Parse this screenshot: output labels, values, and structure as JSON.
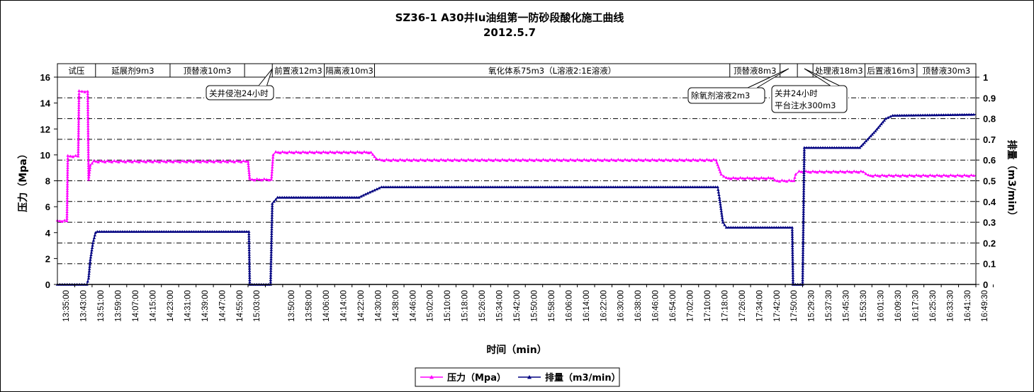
{
  "chart_data": {
    "type": "line",
    "title": "SZ36-1 A30井lu油组第一防砂段酸化施工曲线",
    "subtitle": "2012.5.7",
    "xlabel": "时间（min）",
    "ylabel_left": "压力（Mpa）",
    "ylabel_right": "排量（m3/min）",
    "ylim_left": [
      0,
      16
    ],
    "ylim_right": [
      0,
      1
    ],
    "yticks_left": [
      "0",
      "2",
      "4",
      "6",
      "8",
      "10",
      "12",
      "14",
      "16"
    ],
    "yticks_right": [
      "0",
      "0.1",
      "0.2",
      "0.3",
      "0.4",
      "0.5",
      "0.6",
      "0.7",
      "0.8",
      "0.9",
      "1"
    ],
    "x_tick_labels": [
      "13:35:00",
      "13:43:00",
      "13:51:00",
      "13:59:00",
      "14:07:00",
      "14:15:00",
      "14:23:00",
      "14:31:00",
      "14:39:00",
      "14:47:00",
      "14:55:00",
      "15:03:00",
      "",
      "13:50:00",
      "13:58:00",
      "14:06:00",
      "14:14:00",
      "14:22:00",
      "14:30:00",
      "14:38:00",
      "14:46:00",
      "15:02:00",
      "15:10:00",
      "15:18:00",
      "15:26:00",
      "15:34:00",
      "15:42:00",
      "15:50:00",
      "15:58:00",
      "16:06:00",
      "16:14:00",
      "16:22:00",
      "16:30:00",
      "16:38:00",
      "16:46:00",
      "16:54:00",
      "17:02:00",
      "17:10:00",
      "17:18:00",
      "17:26:00",
      "17:34:00",
      "17:42:00",
      "17:50:00",
      "15:29:30",
      "15:37:30",
      "15:45:30",
      "15:53:30",
      "16:01:30",
      "16:09:30",
      "16:17:30",
      "16:25:30",
      "16:33:30",
      "16:41:30",
      "16:49:30"
    ],
    "x_range": [
      0,
      53
    ],
    "grid": true,
    "legend_position": "bottom",
    "stages": [
      {
        "label": "试压",
        "from": 0,
        "to": 2.2
      },
      {
        "label": "延展剂9m3",
        "from": 2.2,
        "to": 6.5
      },
      {
        "label": "顶替液10m3",
        "from": 6.5,
        "to": 10.8
      },
      {
        "label": "",
        "from": 10.8,
        "to": 12.4
      },
      {
        "label": "前置液12m3",
        "from": 12.4,
        "to": 15.4
      },
      {
        "label": "隔离液10m3",
        "from": 15.4,
        "to": 18.3
      },
      {
        "label": "氧化体系75m3（L溶液2:1E溶液）",
        "from": 18.3,
        "to": 38.8
      },
      {
        "label": "顶替液8m3",
        "from": 38.8,
        "to": 41.7
      },
      {
        "label": "",
        "from": 41.7,
        "to": 42.7
      },
      {
        "label": "",
        "from": 42.7,
        "to": 43.6
      },
      {
        "label": "处理液18m3",
        "from": 43.6,
        "to": 46.6
      },
      {
        "label": "后置液16m3",
        "from": 46.6,
        "to": 49.6
      },
      {
        "label": "顶替液30m3",
        "from": 49.6,
        "to": 53
      }
    ],
    "annotations": [
      {
        "lines": [
          "关井侵泡24小时"
        ],
        "anchor_x": 12.4
      },
      {
        "lines": [
          "除氧剂溶液2m3"
        ],
        "anchor_x": 42.2
      },
      {
        "lines": [
          "关井24小时",
          "平台注水300m3"
        ],
        "anchor_x": 43.1
      }
    ],
    "series": [
      {
        "name": "压力（Mpa）",
        "color": "#ff00ff",
        "marker": "triangle",
        "axis": "left",
        "points": [
          [
            0,
            4.9
          ],
          [
            0.55,
            4.9
          ],
          [
            0.6,
            9.9
          ],
          [
            1.2,
            9.9
          ],
          [
            1.25,
            14.9
          ],
          [
            1.75,
            14.9
          ],
          [
            1.8,
            8.1
          ],
          [
            1.9,
            9.2
          ],
          [
            2.1,
            9.5
          ],
          [
            11,
            9.5
          ],
          [
            11.1,
            8.1
          ],
          [
            12.35,
            8.1
          ],
          [
            12.45,
            10.0
          ],
          [
            12.6,
            10.2
          ],
          [
            18.1,
            10.2
          ],
          [
            18.4,
            9.7
          ],
          [
            18.6,
            9.6
          ],
          [
            38.0,
            9.6
          ],
          [
            38.3,
            8.5
          ],
          [
            38.6,
            8.2
          ],
          [
            41.3,
            8.2
          ],
          [
            41.4,
            8.0
          ],
          [
            42.5,
            8.0
          ],
          [
            42.6,
            8.5
          ],
          [
            42.8,
            8.7
          ],
          [
            46.5,
            8.7
          ],
          [
            46.8,
            8.4
          ],
          [
            53,
            8.4
          ]
        ]
      },
      {
        "name": "排量（m3/min）",
        "color": "#000080",
        "marker": "triangle",
        "axis": "right",
        "points": [
          [
            0,
            0
          ],
          [
            1.7,
            0
          ],
          [
            1.8,
            0.03
          ],
          [
            1.9,
            0.12
          ],
          [
            2.05,
            0.2
          ],
          [
            2.2,
            0.25
          ],
          [
            2.3,
            0.255
          ],
          [
            11.05,
            0.255
          ],
          [
            11.1,
            0
          ],
          [
            12.3,
            0
          ],
          [
            12.4,
            0.39
          ],
          [
            12.7,
            0.42
          ],
          [
            17.4,
            0.42
          ],
          [
            17.9,
            0.44
          ],
          [
            18.7,
            0.47
          ],
          [
            38.1,
            0.47
          ],
          [
            38.2,
            0.42
          ],
          [
            38.4,
            0.3
          ],
          [
            38.6,
            0.275
          ],
          [
            42.4,
            0.275
          ],
          [
            42.45,
            0
          ],
          [
            43.0,
            0
          ],
          [
            43.1,
            0.66
          ],
          [
            46.3,
            0.66
          ],
          [
            47.2,
            0.74
          ],
          [
            47.8,
            0.8
          ],
          [
            48.2,
            0.815
          ],
          [
            53,
            0.82
          ]
        ]
      }
    ]
  },
  "colors": {
    "pressure": "#ff00ff",
    "rate": "#000080",
    "grid": "#000000"
  }
}
